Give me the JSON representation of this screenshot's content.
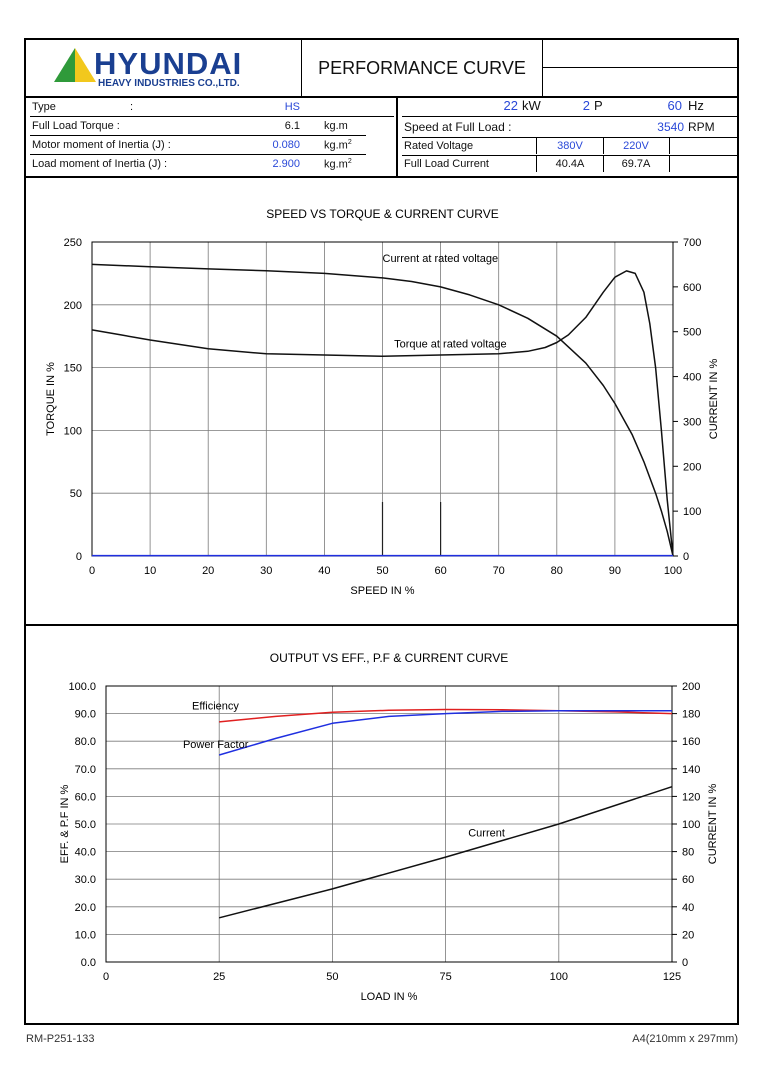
{
  "header": {
    "brand": "HYUNDAI",
    "brand_sub": "HEAVY INDUSTRIES CO.,LTD.",
    "title": "PERFORMANCE CURVE"
  },
  "specs": {
    "type_label": "Type",
    "type_sep": ":",
    "type_value": "HS",
    "torque_label": "Full Load Torque :",
    "torque_value": "6.1",
    "torque_unit": "kg.m",
    "motor_inertia_label": "Motor moment of Inertia (J) :",
    "motor_inertia_value": "0.080",
    "motor_inertia_unit": "kg.m",
    "load_inertia_label": "Load moment of Inertia (J) :",
    "load_inertia_value": "2.900",
    "load_inertia_unit": "kg.m",
    "unit_exp": "2",
    "power_value": "22",
    "power_unit": "kW",
    "poles_value": "2",
    "poles_unit": "P",
    "freq_value": "60",
    "freq_unit": "Hz",
    "speed_label": "Speed at Full Load :",
    "speed_value": "3540",
    "speed_unit": "RPM",
    "rated_voltage_label": "Rated Voltage",
    "voltage_1": "380V",
    "voltage_2": "220V",
    "full_load_current_label": "Full Load Current",
    "current_1": "40.4A",
    "current_2": "69.7A"
  },
  "footer": {
    "doc_no": "RM-P251-133",
    "paper": "A4(210mm x 297mm)"
  },
  "colors": {
    "brand_blue": "#1a3f91",
    "logo_green": "#2f9a3a",
    "logo_yellow": "#f2c81d",
    "value_blue": "#2a49d8",
    "efficiency_red": "#e02020",
    "pf_blue": "#1f2fe0"
  },
  "chart_data": [
    {
      "type": "line",
      "title": "SPEED VS TORQUE & CURRENT CURVE",
      "xlabel": "SPEED IN %",
      "ylabel": "TORQUE IN %",
      "y2label": "CURRENT IN %",
      "xlim": [
        0,
        100
      ],
      "ylim": [
        0,
        250
      ],
      "y2lim": [
        0,
        700
      ],
      "xticks": [
        "0",
        "10",
        "20",
        "30",
        "40",
        "50",
        "60",
        "70",
        "80",
        "90",
        "100"
      ],
      "yticks": [
        "0",
        "50",
        "100",
        "150",
        "200",
        "250"
      ],
      "y2ticks": [
        "0",
        "100",
        "200",
        "300",
        "400",
        "500",
        "600",
        "700"
      ],
      "grid": true,
      "series": [
        {
          "name": "Current at rated voltage",
          "axis": "y2",
          "color": "#111111",
          "x": [
            0,
            10,
            20,
            30,
            40,
            50,
            55,
            60,
            65,
            70,
            75,
            80,
            85,
            88,
            90,
            93,
            95,
            97,
            98,
            99,
            100
          ],
          "y": [
            650,
            645,
            640,
            636,
            630,
            620,
            612,
            600,
            582,
            560,
            530,
            490,
            430,
            380,
            340,
            270,
            210,
            140,
            100,
            55,
            0
          ],
          "label_x": 50,
          "label_y": 655
        },
        {
          "name": "Torque at rated voltage",
          "axis": "y",
          "color": "#111111",
          "x": [
            0,
            5,
            10,
            20,
            30,
            40,
            50,
            60,
            70,
            75,
            78,
            80,
            82,
            85,
            88,
            90,
            92,
            93.5,
            95,
            96,
            97,
            98,
            99,
            100
          ],
          "y": [
            180,
            176,
            172,
            165,
            161,
            160,
            159,
            160,
            161,
            163,
            166,
            170,
            176,
            190,
            210,
            222,
            227,
            225,
            210,
            185,
            150,
            100,
            45,
            0
          ],
          "label_x": 52,
          "label_y": 166
        },
        {
          "name": "",
          "axis": "y",
          "color": "#1f2fe0",
          "x": [
            0,
            100
          ],
          "y": [
            0.3,
            0.3
          ]
        }
      ],
      "markers": [
        {
          "x": 50,
          "y_from": 0,
          "y_to": 43
        },
        {
          "x": 60,
          "y_from": 0,
          "y_to": 43
        }
      ]
    },
    {
      "type": "line",
      "title": "OUTPUT VS EFF., P.F & CURRENT CURVE",
      "xlabel": "LOAD IN %",
      "ylabel": "EFF. & P.F IN %",
      "y2label": "CURRENT IN %",
      "xlim": [
        0,
        125
      ],
      "ylim": [
        0,
        100
      ],
      "y2lim": [
        0,
        200
      ],
      "xticks": [
        "0",
        "25",
        "50",
        "75",
        "100",
        "125"
      ],
      "yticks": [
        "0.0",
        "10.0",
        "20.0",
        "30.0",
        "40.0",
        "50.0",
        "60.0",
        "70.0",
        "80.0",
        "90.0",
        "100.0"
      ],
      "y2ticks": [
        "0",
        "20",
        "40",
        "60",
        "80",
        "100",
        "120",
        "140",
        "160",
        "180",
        "200"
      ],
      "grid": true,
      "series": [
        {
          "name": "Efficiency",
          "axis": "y",
          "color": "#e02020",
          "x": [
            25,
            37.5,
            50,
            62.5,
            75,
            87.5,
            100,
            112.5,
            125
          ],
          "y": [
            87.0,
            89.0,
            90.5,
            91.2,
            91.5,
            91.4,
            91.0,
            90.6,
            90.0
          ],
          "label_x": 19,
          "label_y": 91.5
        },
        {
          "name": "Power Factor",
          "axis": "y",
          "color": "#1f2fe0",
          "x": [
            25,
            37.5,
            50,
            62.5,
            75,
            87.5,
            100,
            112.5,
            125
          ],
          "y": [
            75.0,
            81.0,
            86.5,
            89.0,
            90.0,
            90.8,
            91.0,
            91.0,
            91.0
          ],
          "label_x": 17,
          "label_y": 77.5
        },
        {
          "name": "Current",
          "axis": "y2",
          "color": "#111111",
          "x": [
            25,
            50,
            75,
            100,
            125
          ],
          "y": [
            32,
            53,
            76,
            100,
            127
          ],
          "label_x": 80,
          "label_y": 91
        }
      ]
    }
  ]
}
